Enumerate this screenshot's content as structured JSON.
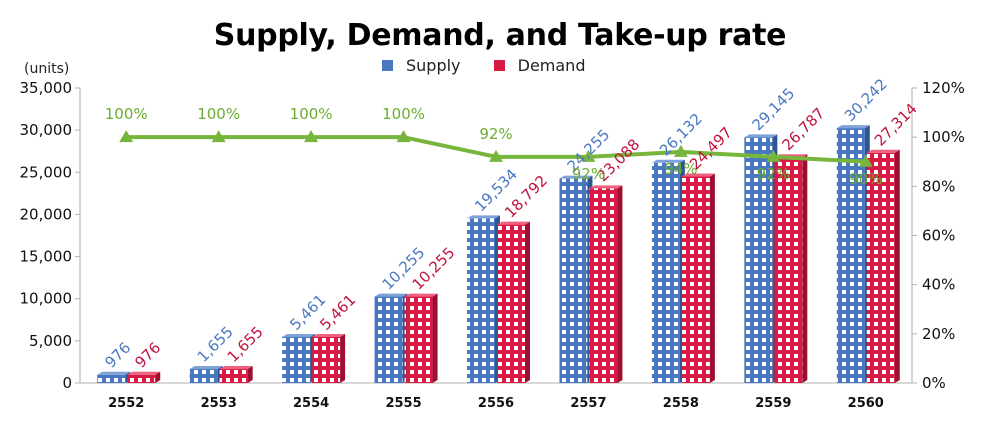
{
  "chart_data": {
    "type": "bar",
    "title": "Supply, Demand, and Take-up rate",
    "units_label": "(units)",
    "categories": [
      "2552",
      "2553",
      "2554",
      "2555",
      "2556",
      "2557",
      "2558",
      "2559",
      "2560"
    ],
    "series": [
      {
        "name": "Supply",
        "type": "bar",
        "axis": "left",
        "color": "#4a78c0",
        "values": [
          976,
          1655,
          5461,
          10255,
          19534,
          24255,
          26132,
          29145,
          30242
        ],
        "labels": [
          "976",
          "1,655",
          "5,461",
          "10,255",
          "19,534",
          "24,255",
          "26,132",
          "29,145",
          "30,242"
        ]
      },
      {
        "name": "Demand",
        "type": "bar",
        "axis": "left",
        "color": "#d81b45",
        "values": [
          976,
          1655,
          5461,
          10255,
          18792,
          23088,
          24497,
          26787,
          27314
        ],
        "labels": [
          "976",
          "1,655",
          "5,461",
          "10,255",
          "18,792",
          "23,088",
          "24,497",
          "26,787",
          "27,314"
        ]
      },
      {
        "type": "line",
        "axis": "right",
        "color": "#77b63c",
        "values": [
          100,
          100,
          100,
          100,
          92,
          92,
          94,
          92,
          90
        ],
        "labels": [
          "100%",
          "100%",
          "100%",
          "100%",
          "92%",
          "92%",
          "94%",
          "92%",
          "90%"
        ]
      }
    ],
    "y_left": {
      "min": 0,
      "max": 35000,
      "ticks": [
        "0",
        "5,000",
        "10,000",
        "15,000",
        "20,000",
        "25,000",
        "30,000",
        "35,000"
      ]
    },
    "y_right": {
      "min": 0,
      "max": 120,
      "ticks": [
        "0%",
        "20%",
        "40%",
        "60%",
        "80%",
        "100%",
        "120%"
      ]
    },
    "legend_position": "top-center",
    "grid": false
  }
}
